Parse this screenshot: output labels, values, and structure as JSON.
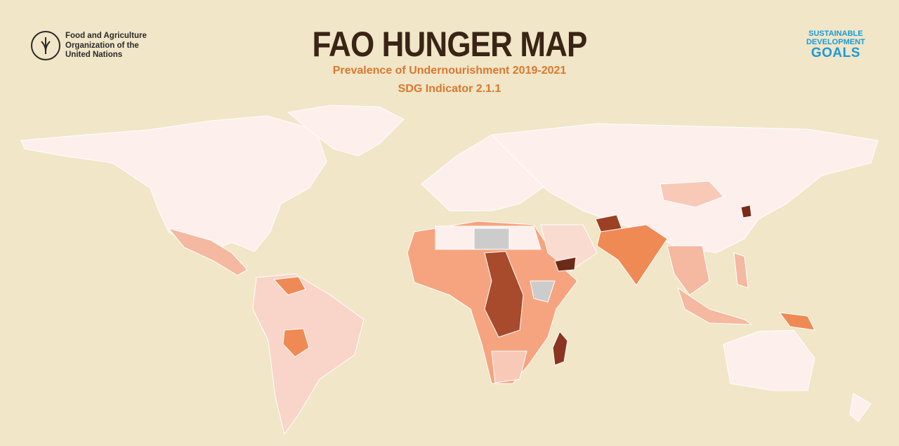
{
  "header": {
    "title": "FAO HUNGER MAP",
    "subtitle": "Prevalence of Undernourishment 2019-2021",
    "indicator": "SDG Indicator 2.1.1"
  },
  "organization": {
    "name_lines": [
      "Food and Agriculture",
      "Organization of the",
      "United Nations"
    ]
  },
  "sdg_logo": {
    "lines": [
      "SUSTAINABLE",
      "DEVELOPMENT",
      "GOALS"
    ]
  }
}
